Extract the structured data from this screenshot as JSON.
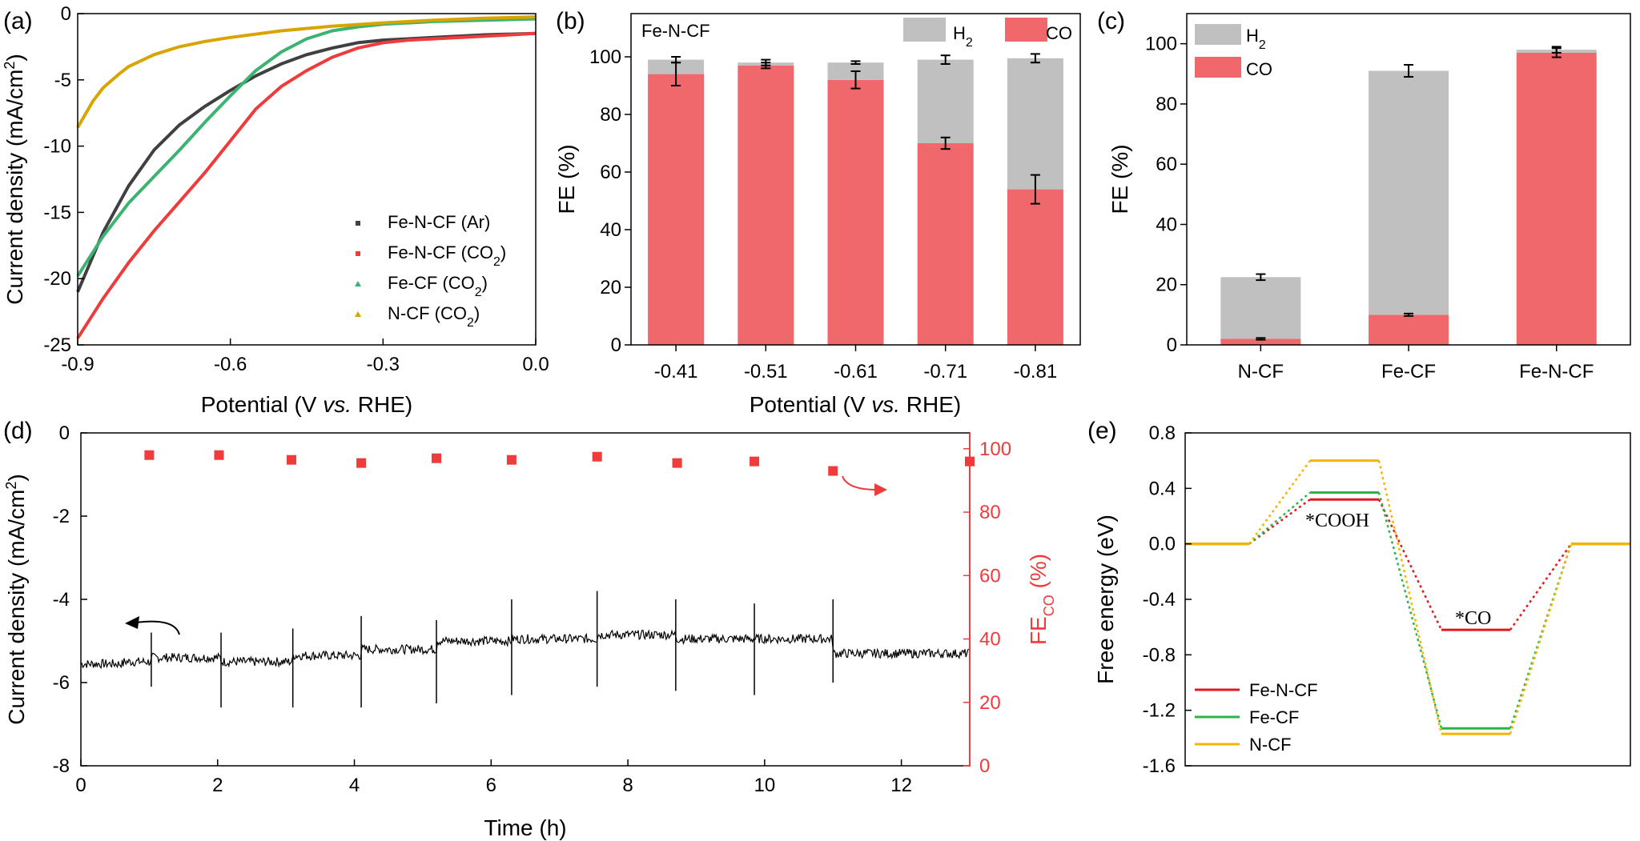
{
  "colors": {
    "co": "#f0686b",
    "h2": "#c0c0c0",
    "fe_n_cf_co2": "#ef3b3b",
    "fe_n_cf_ar": "#404040",
    "fe_cf": "#3cb371",
    "n_cf": "#d9a400",
    "energy_fe_n_cf": "#e0191f",
    "energy_fe_cf": "#2db34a",
    "energy_n_cf": "#f5b400",
    "fe_points": "#ef3b3b"
  },
  "chart_data": [
    {
      "panel": "(a)",
      "type": "line",
      "xlabel_pre": "Potential (V ",
      "xlabel_em": "vs.",
      "xlabel_post": " RHE)",
      "ylabel": "Current density (mA/cm",
      "ylabel_sup": "2",
      "ylabel_end": ")",
      "xlim": [
        -0.9,
        0.0
      ],
      "ylim": [
        -25,
        0
      ],
      "xticks": [
        "-0.9",
        "-0.6",
        "-0.3",
        "0.0"
      ],
      "yticks": [
        "0",
        "-5",
        "-10",
        "-15",
        "-20",
        "-25"
      ],
      "legend": [
        {
          "name": "Fe-N-CF (Ar)"
        },
        {
          "name": "Fe-N-CF (CO",
          "sub": "2",
          "end": ")"
        },
        {
          "name": "Fe-CF (CO",
          "sub": "2",
          "end": ")"
        },
        {
          "name": "N-CF (CO",
          "sub": "2",
          "end": ")"
        }
      ],
      "series": [
        {
          "key": "ar",
          "x": [
            -0.9,
            -0.85,
            -0.8,
            -0.75,
            -0.7,
            -0.65,
            -0.6,
            -0.55,
            -0.5,
            -0.45,
            -0.4,
            -0.35,
            -0.3,
            -0.25,
            -0.2,
            -0.1,
            0.0
          ],
          "y": [
            -21,
            -16.5,
            -13,
            -10.3,
            -8.4,
            -7,
            -5.8,
            -4.7,
            -3.8,
            -3.1,
            -2.6,
            -2.2,
            -2.0,
            -1.9,
            -1.8,
            -1.6,
            -1.5
          ]
        },
        {
          "key": "co2",
          "x": [
            -0.9,
            -0.85,
            -0.8,
            -0.75,
            -0.7,
            -0.65,
            -0.6,
            -0.55,
            -0.5,
            -0.45,
            -0.4,
            -0.35,
            -0.3,
            -0.25,
            -0.2,
            -0.1,
            0.0
          ],
          "y": [
            -24.5,
            -21.5,
            -18.8,
            -16.4,
            -14.2,
            -12,
            -9.6,
            -7.2,
            -5.5,
            -4.3,
            -3.3,
            -2.6,
            -2.2,
            -2.0,
            -1.9,
            -1.7,
            -1.5
          ]
        },
        {
          "key": "fecf",
          "x": [
            -0.9,
            -0.85,
            -0.8,
            -0.75,
            -0.7,
            -0.65,
            -0.6,
            -0.55,
            -0.5,
            -0.45,
            -0.4,
            -0.35,
            -0.3,
            -0.25,
            -0.2,
            -0.1,
            0.0
          ],
          "y": [
            -19.8,
            -16.8,
            -14.3,
            -12.3,
            -10.3,
            -8.2,
            -6.2,
            -4.3,
            -2.9,
            -1.9,
            -1.3,
            -1.0,
            -0.8,
            -0.7,
            -0.6,
            -0.5,
            -0.4
          ]
        },
        {
          "key": "ncf",
          "x": [
            -0.9,
            -0.87,
            -0.85,
            -0.82,
            -0.8,
            -0.75,
            -0.7,
            -0.65,
            -0.6,
            -0.5,
            -0.4,
            -0.3,
            -0.2,
            -0.1,
            0.0
          ],
          "y": [
            -8.6,
            -6.6,
            -5.6,
            -4.6,
            -4.0,
            -3.1,
            -2.5,
            -2.1,
            -1.8,
            -1.3,
            -0.95,
            -0.7,
            -0.5,
            -0.35,
            -0.25
          ]
        }
      ]
    },
    {
      "panel": "(b)",
      "type": "bar",
      "subtitle": "Fe-N-CF",
      "xlabel_pre": "Potential (V ",
      "xlabel_em": "vs.",
      "xlabel_post": " RHE)",
      "ylabel": "FE (%)",
      "categories": [
        "-0.41",
        "-0.51",
        "-0.61",
        "-0.71",
        "-0.81"
      ],
      "ylim": [
        0,
        115
      ],
      "yticks": [
        "0",
        "20",
        "40",
        "60",
        "80",
        "100"
      ],
      "legend": [
        {
          "name": "H",
          "sub": "2"
        },
        {
          "name": "CO"
        }
      ],
      "series": [
        {
          "name": "CO",
          "values": [
            94,
            97,
            92,
            70,
            54
          ],
          "err": [
            4,
            1,
            3,
            2,
            5
          ]
        },
        {
          "name": "H2",
          "values": [
            5,
            1,
            6,
            29,
            45.5
          ],
          "err": [
            1,
            1,
            0.5,
            1.5,
            1.5
          ]
        }
      ]
    },
    {
      "panel": "(c)",
      "type": "bar",
      "ylabel": "FE (%)",
      "categories": [
        "N-CF",
        "Fe-CF",
        "Fe-N-CF"
      ],
      "ylim": [
        0,
        110
      ],
      "yticks": [
        "0",
        "20",
        "40",
        "60",
        "80",
        "100"
      ],
      "legend": [
        {
          "name": "H",
          "sub": "2"
        },
        {
          "name": "CO"
        }
      ],
      "series": [
        {
          "name": "CO",
          "values": [
            2,
            10,
            97
          ],
          "err": [
            0.3,
            0.4,
            1.5
          ]
        },
        {
          "name": "H2",
          "values": [
            20.5,
            81,
            1
          ],
          "err": [
            1,
            2,
            1
          ]
        }
      ]
    },
    {
      "panel": "(d)",
      "type": "line",
      "xlabel": "Time (h)",
      "ylabel": "Current density (mA/cm",
      "ylabel_sup": "2",
      "ylabel_end": ")",
      "y2label": "FE",
      "y2label_sub": "CO",
      "y2label_end": " (%)",
      "xlim": [
        0,
        13
      ],
      "ylim": [
        -8,
        0
      ],
      "y2lim": [
        0,
        105
      ],
      "xticks": [
        "0",
        "2",
        "4",
        "6",
        "8",
        "10",
        "12"
      ],
      "yticks": [
        "0",
        "-2",
        "-4",
        "-6",
        "-8"
      ],
      "y2ticks": [
        "0",
        "20",
        "40",
        "60",
        "80",
        "100"
      ],
      "current": {
        "segments": [
          [
            0,
            0.62,
            -5.55
          ],
          [
            0.62,
            1.03,
            -5.5
          ],
          [
            1.03,
            2.05,
            -5.4
          ],
          [
            2.05,
            3.1,
            -5.5
          ],
          [
            3.1,
            4.1,
            -5.35
          ],
          [
            4.1,
            5.2,
            -5.2
          ],
          [
            5.2,
            6.3,
            -5.0
          ],
          [
            6.3,
            7.55,
            -4.95
          ],
          [
            7.55,
            8.7,
            -4.85
          ],
          [
            8.7,
            9.85,
            -4.95
          ],
          [
            9.85,
            11.0,
            -4.95
          ],
          [
            11.0,
            13.0,
            -5.3
          ]
        ],
        "spikes": [
          {
            "t": 1.03,
            "up": -4.8,
            "down": -6.1
          },
          {
            "t": 2.05,
            "up": -4.8,
            "down": -6.6
          },
          {
            "t": 3.1,
            "up": -4.7,
            "down": -6.6
          },
          {
            "t": 4.1,
            "up": -4.4,
            "down": -6.6
          },
          {
            "t": 5.2,
            "up": -4.5,
            "down": -6.5
          },
          {
            "t": 6.3,
            "up": -4.0,
            "down": -6.3
          },
          {
            "t": 7.55,
            "up": -3.8,
            "down": -6.1
          },
          {
            "t": 8.7,
            "up": -4.0,
            "down": -6.2
          },
          {
            "t": 9.85,
            "up": -4.1,
            "down": -6.3
          },
          {
            "t": 11.0,
            "up": -4.0,
            "down": -6.0
          }
        ]
      },
      "fe": {
        "x": [
          1.0,
          2.02,
          3.08,
          4.1,
          5.2,
          6.3,
          7.55,
          8.72,
          9.85,
          11.0,
          13.0
        ],
        "y": [
          98,
          98,
          96.5,
          95.5,
          97,
          96.5,
          97.5,
          95.5,
          96,
          93,
          96
        ]
      }
    },
    {
      "panel": "(e)",
      "type": "line",
      "ylabel": "Free energy (eV)",
      "ylim": [
        -1.6,
        0.8
      ],
      "yticks": [
        "0.8",
        "0.4",
        "0.0",
        "-0.4",
        "-0.8",
        "-1.2",
        "-1.6"
      ],
      "labels": [
        "*COOH",
        "*CO"
      ],
      "legend": [
        {
          "name": "Fe-N-CF"
        },
        {
          "name": "Fe-CF"
        },
        {
          "name": "N-CF"
        }
      ],
      "series": [
        {
          "name": "Fe-N-CF",
          "levels": [
            0,
            0.32,
            -0.62,
            0
          ]
        },
        {
          "name": "Fe-CF",
          "levels": [
            0,
            0.37,
            -1.33,
            0
          ]
        },
        {
          "name": "N-CF",
          "levels": [
            0,
            0.6,
            -1.37,
            0
          ]
        }
      ]
    }
  ]
}
